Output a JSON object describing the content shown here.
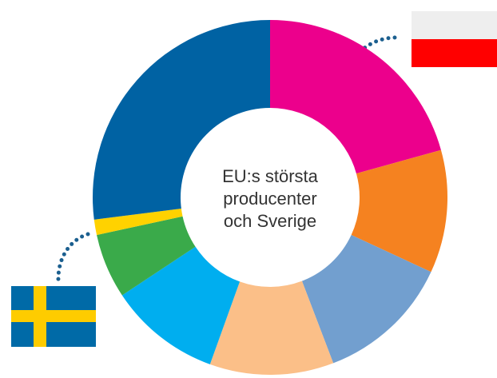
{
  "chart_data": {
    "type": "donut",
    "center_text": [
      "EU:s största",
      "producenter",
      "och Sverige"
    ],
    "values": [
      20.7,
      11.2,
      12.3,
      11.3,
      10.2,
      5.9,
      1.4,
      27.0
    ],
    "colors": [
      "#ec008c",
      "#f58220",
      "#729fcf",
      "#fbbf88",
      "#00aeef",
      "#3aaa4a",
      "#ffd200",
      "#0062a3"
    ]
  }
}
